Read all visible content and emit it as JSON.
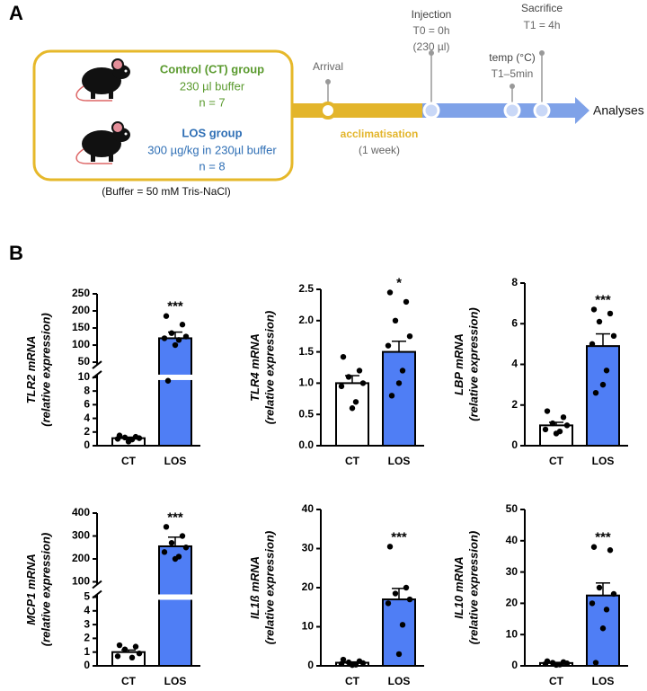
{
  "panel_a": {
    "label": "A",
    "control_title": "Control (CT) group",
    "control_dose": "230 µl buffer",
    "control_n": "n = 7",
    "los_title": "LOS group",
    "los_dose": "300 µg/kg in 230µl buffer",
    "los_n": "n = 8",
    "buffer_note": "(Buffer = 50 mM Tris-NaCl)",
    "arrival": "Arrival",
    "injection": "Injection",
    "injection_time": "T0 = 0h",
    "injection_volume": "(230 µl)",
    "temp": "temp (°C)",
    "temp_time": "T1–5min",
    "sacrifice": "Sacrifice",
    "sacrifice_time": "T1 = 4h",
    "acclimatisation": "acclimatisation",
    "acclimatisation_duration": "(1 week)",
    "analyses": "Analyses"
  },
  "panel_b_label": "B",
  "chart_data": [
    {
      "type": "bar",
      "gene": "TLR2",
      "ylabel_suffix": " mRNA",
      "ylabel_note": "(relative expression)",
      "categories": [
        "CT",
        "LOS"
      ],
      "values": [
        1.1,
        120
      ],
      "errors": [
        0.15,
        18
      ],
      "points": [
        [
          1.5,
          1.3,
          1.2,
          1.1,
          1.0,
          0.9,
          0.6
        ],
        [
          185,
          160,
          135,
          125,
          120,
          115,
          100,
          9.5
        ]
      ],
      "annotation": "***",
      "colors": [
        "#ffffff",
        "#4f7ef5"
      ],
      "ylim": [
        0,
        250
      ],
      "axis_break": [
        10,
        50
      ],
      "yticks": [
        0,
        2,
        4,
        6,
        8,
        10,
        50,
        100,
        150,
        200,
        250
      ]
    },
    {
      "type": "bar",
      "gene": "TLR4",
      "ylabel_suffix": " mRNA",
      "ylabel_note": "(relative expression)",
      "categories": [
        "CT",
        "LOS"
      ],
      "values": [
        1.0,
        1.5
      ],
      "errors": [
        0.12,
        0.17
      ],
      "points": [
        [
          1.42,
          1.2,
          1.1,
          1.0,
          0.95,
          0.7,
          0.6
        ],
        [
          2.45,
          2.3,
          2.0,
          1.75,
          1.6,
          1.2,
          1.0,
          0.8
        ]
      ],
      "annotation": "*",
      "colors": [
        "#ffffff",
        "#4f7ef5"
      ],
      "ylim": [
        0,
        2.5
      ],
      "yticks": [
        {
          "value": 0,
          "label": "0.0"
        },
        0.5,
        {
          "value": 1,
          "label": "1.0"
        },
        1.5,
        {
          "value": 2,
          "label": "2.0"
        },
        2.5
      ]
    },
    {
      "type": "bar",
      "gene": "LBP",
      "ylabel_suffix": " mRNA",
      "ylabel_note": "(relative expression)",
      "categories": [
        "CT",
        "LOS"
      ],
      "values": [
        1.0,
        4.9
      ],
      "errors": [
        0.15,
        0.6
      ],
      "points": [
        [
          1.7,
          1.4,
          1.1,
          1.0,
          0.8,
          0.7,
          0.6
        ],
        [
          6.7,
          6.5,
          6.1,
          5.4,
          5.0,
          3.7,
          3.0,
          2.6
        ]
      ],
      "annotation": "***",
      "colors": [
        "#ffffff",
        "#4f7ef5"
      ],
      "ylim": [
        0,
        8
      ],
      "yticks": [
        0,
        2,
        4,
        6,
        8
      ]
    },
    {
      "type": "bar",
      "gene": "MCP1",
      "ylabel_suffix": " mRNA",
      "ylabel_note": "(relative expression)",
      "categories": [
        "CT",
        "LOS"
      ],
      "values": [
        1.0,
        255
      ],
      "errors": [
        0.15,
        40
      ],
      "points": [
        [
          1.5,
          1.4,
          1.2,
          0.9,
          0.7,
          0.6
        ],
        [
          340,
          300,
          270,
          250,
          230,
          210,
          200
        ]
      ],
      "annotation": "***",
      "colors": [
        "#ffffff",
        "#4f7ef5"
      ],
      "ylim": [
        0,
        400
      ],
      "axis_break": [
        5,
        100
      ],
      "yticks": [
        0,
        1,
        2,
        3,
        4,
        5,
        100,
        200,
        300,
        400
      ]
    },
    {
      "type": "bar",
      "gene": "IL1ß",
      "ylabel_suffix": " mRNA",
      "ylabel_note": "(relative expression)",
      "categories": [
        "CT",
        "LOS"
      ],
      "values": [
        0.8,
        17
      ],
      "errors": [
        0.2,
        2.8
      ],
      "points": [
        [
          1.6,
          1.2,
          0.9,
          0.7,
          0.5,
          0.3,
          0.2
        ],
        [
          30.5,
          20,
          18.5,
          17,
          16,
          10.5,
          3
        ]
      ],
      "annotation": "***",
      "colors": [
        "#ffffff",
        "#4f7ef5"
      ],
      "ylim": [
        0,
        40
      ],
      "yticks": [
        0,
        10,
        20,
        30,
        40
      ]
    },
    {
      "type": "bar",
      "gene": "IL10",
      "ylabel_suffix": " mRNA",
      "ylabel_note": "(relative expression)",
      "categories": [
        "CT",
        "LOS"
      ],
      "values": [
        0.9,
        22.5
      ],
      "errors": [
        0.2,
        4
      ],
      "points": [
        [
          1.5,
          1.2,
          1.0,
          0.8,
          0.6,
          0.4,
          0.3
        ],
        [
          38,
          37,
          25,
          23,
          20,
          18,
          12,
          1
        ]
      ],
      "annotation": "***",
      "colors": [
        "#ffffff",
        "#4f7ef5"
      ],
      "ylim": [
        0,
        50
      ],
      "yticks": [
        0,
        10,
        20,
        30,
        40,
        50
      ]
    }
  ]
}
